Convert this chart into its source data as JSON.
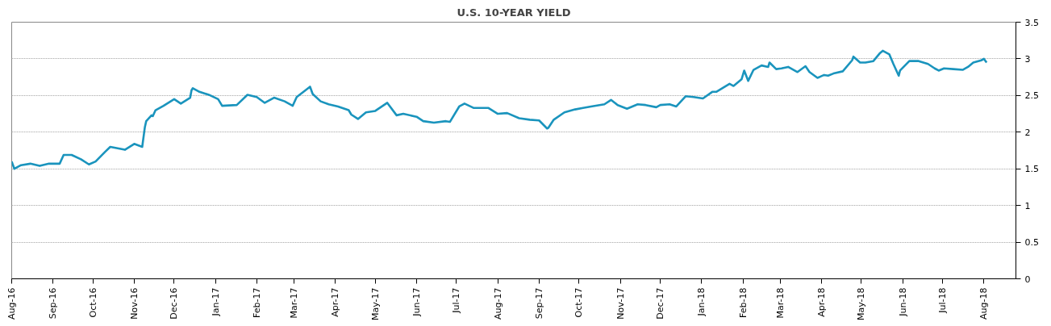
{
  "chart_data": {
    "type": "line",
    "title": "U.S. 10-YEAR YIELD",
    "xlim": [
      "2016-08-01",
      "2018-08-25"
    ],
    "xticks": [
      {
        "value": "2016-08-01",
        "label": "Aug-16"
      },
      {
        "value": "2016-09-01",
        "label": "Sep-16"
      },
      {
        "value": "2016-10-01",
        "label": "Oct-16"
      },
      {
        "value": "2016-11-01",
        "label": "Nov-16"
      },
      {
        "value": "2016-12-01",
        "label": "Dec-16"
      },
      {
        "value": "2017-01-01",
        "label": "Jan-17"
      },
      {
        "value": "2017-02-01",
        "label": "Feb-17"
      },
      {
        "value": "2017-03-01",
        "label": "Mar-17"
      },
      {
        "value": "2017-04-01",
        "label": "Apr-17"
      },
      {
        "value": "2017-05-01",
        "label": "May-17"
      },
      {
        "value": "2017-06-01",
        "label": "Jun-17"
      },
      {
        "value": "2017-07-01",
        "label": "Jul-17"
      },
      {
        "value": "2017-08-01",
        "label": "Aug-17"
      },
      {
        "value": "2017-09-01",
        "label": "Sep-17"
      },
      {
        "value": "2017-10-01",
        "label": "Oct-17"
      },
      {
        "value": "2017-11-01",
        "label": "Nov-17"
      },
      {
        "value": "2017-12-01",
        "label": "Dec-17"
      },
      {
        "value": "2018-01-01",
        "label": "Jan-18"
      },
      {
        "value": "2018-02-01",
        "label": "Feb-18"
      },
      {
        "value": "2018-03-01",
        "label": "Mar-18"
      },
      {
        "value": "2018-04-01",
        "label": "Apr-18"
      },
      {
        "value": "2018-05-01",
        "label": "May-18"
      },
      {
        "value": "2018-06-01",
        "label": "Jun-18"
      },
      {
        "value": "2018-07-01",
        "label": "Jul-18"
      },
      {
        "value": "2018-08-01",
        "label": "Aug-18"
      }
    ],
    "ylim": [
      0,
      3.5
    ],
    "yticks": [
      0,
      0.5,
      1,
      1.5,
      2,
      2.5,
      3,
      3.5
    ],
    "grid": "y",
    "marker": "none",
    "line_style": "solid",
    "x": [
      "2016-08-01",
      "2016-08-03",
      "2016-08-08",
      "2016-08-15",
      "2016-08-22",
      "2016-08-29",
      "2016-09-06",
      "2016-09-09",
      "2016-09-15",
      "2016-09-22",
      "2016-09-28",
      "2016-10-03",
      "2016-10-10",
      "2016-10-14",
      "2016-10-25",
      "2016-11-01",
      "2016-11-07",
      "2016-11-09",
      "2016-11-10",
      "2016-11-14",
      "2016-11-15",
      "2016-11-17",
      "2016-11-23",
      "2016-12-01",
      "2016-12-06",
      "2016-12-13",
      "2016-12-14",
      "2016-12-15",
      "2016-12-20",
      "2016-12-27",
      "2017-01-03",
      "2017-01-06",
      "2017-01-17",
      "2017-01-25",
      "2017-02-01",
      "2017-02-07",
      "2017-02-14",
      "2017-02-22",
      "2017-02-28",
      "2017-03-03",
      "2017-03-13",
      "2017-03-15",
      "2017-03-21",
      "2017-03-27",
      "2017-04-03",
      "2017-04-11",
      "2017-04-13",
      "2017-04-18",
      "2017-04-24",
      "2017-05-01",
      "2017-05-10",
      "2017-05-17",
      "2017-05-22",
      "2017-06-01",
      "2017-06-06",
      "2017-06-14",
      "2017-06-23",
      "2017-06-26",
      "2017-07-03",
      "2017-07-07",
      "2017-07-14",
      "2017-07-25",
      "2017-08-01",
      "2017-08-08",
      "2017-08-17",
      "2017-08-25",
      "2017-09-01",
      "2017-09-07",
      "2017-09-08",
      "2017-09-12",
      "2017-09-20",
      "2017-09-28",
      "2017-10-04",
      "2017-10-10",
      "2017-10-20",
      "2017-10-25",
      "2017-10-30",
      "2017-11-06",
      "2017-11-14",
      "2017-11-20",
      "2017-11-28",
      "2017-12-01",
      "2017-12-08",
      "2017-12-13",
      "2017-12-20",
      "2017-12-26",
      "2018-01-02",
      "2018-01-09",
      "2018-01-12",
      "2018-01-22",
      "2018-01-25",
      "2018-01-31",
      "2018-02-02",
      "2018-02-05",
      "2018-02-09",
      "2018-02-15",
      "2018-02-20",
      "2018-02-21",
      "2018-02-26",
      "2018-03-02",
      "2018-03-07",
      "2018-03-14",
      "2018-03-20",
      "2018-03-23",
      "2018-03-29",
      "2018-04-03",
      "2018-04-06",
      "2018-04-10",
      "2018-04-17",
      "2018-04-24",
      "2018-04-25",
      "2018-04-30",
      "2018-05-04",
      "2018-05-10",
      "2018-05-15",
      "2018-05-17",
      "2018-05-22",
      "2018-05-25",
      "2018-05-29",
      "2018-05-30",
      "2018-06-06",
      "2018-06-13",
      "2018-06-20",
      "2018-06-25",
      "2018-06-28",
      "2018-07-02",
      "2018-07-09",
      "2018-07-16",
      "2018-07-20",
      "2018-07-24",
      "2018-07-30",
      "2018-08-01",
      "2018-08-03"
    ],
    "series": [
      {
        "color": "#1a94bd",
        "values": [
          1.6,
          1.5,
          1.55,
          1.57,
          1.54,
          1.57,
          1.57,
          1.69,
          1.69,
          1.63,
          1.56,
          1.6,
          1.73,
          1.8,
          1.76,
          1.84,
          1.8,
          2.07,
          2.15,
          2.23,
          2.22,
          2.3,
          2.36,
          2.45,
          2.39,
          2.47,
          2.57,
          2.6,
          2.55,
          2.51,
          2.45,
          2.36,
          2.37,
          2.51,
          2.48,
          2.4,
          2.47,
          2.42,
          2.36,
          2.48,
          2.62,
          2.52,
          2.42,
          2.38,
          2.35,
          2.3,
          2.24,
          2.18,
          2.27,
          2.29,
          2.4,
          2.23,
          2.25,
          2.21,
          2.15,
          2.13,
          2.15,
          2.14,
          2.35,
          2.39,
          2.33,
          2.33,
          2.25,
          2.26,
          2.19,
          2.17,
          2.16,
          2.05,
          2.06,
          2.17,
          2.27,
          2.31,
          2.33,
          2.35,
          2.38,
          2.44,
          2.37,
          2.32,
          2.38,
          2.37,
          2.34,
          2.37,
          2.38,
          2.35,
          2.49,
          2.48,
          2.46,
          2.55,
          2.55,
          2.66,
          2.63,
          2.72,
          2.84,
          2.7,
          2.85,
          2.91,
          2.89,
          2.95,
          2.86,
          2.87,
          2.89,
          2.82,
          2.9,
          2.82,
          2.74,
          2.78,
          2.77,
          2.8,
          2.83,
          2.98,
          3.03,
          2.95,
          2.95,
          2.97,
          3.08,
          3.11,
          3.06,
          2.93,
          2.77,
          2.84,
          2.97,
          2.97,
          2.93,
          2.87,
          2.84,
          2.87,
          2.86,
          2.85,
          2.89,
          2.95,
          2.98,
          3.0,
          2.95
        ]
      }
    ]
  }
}
